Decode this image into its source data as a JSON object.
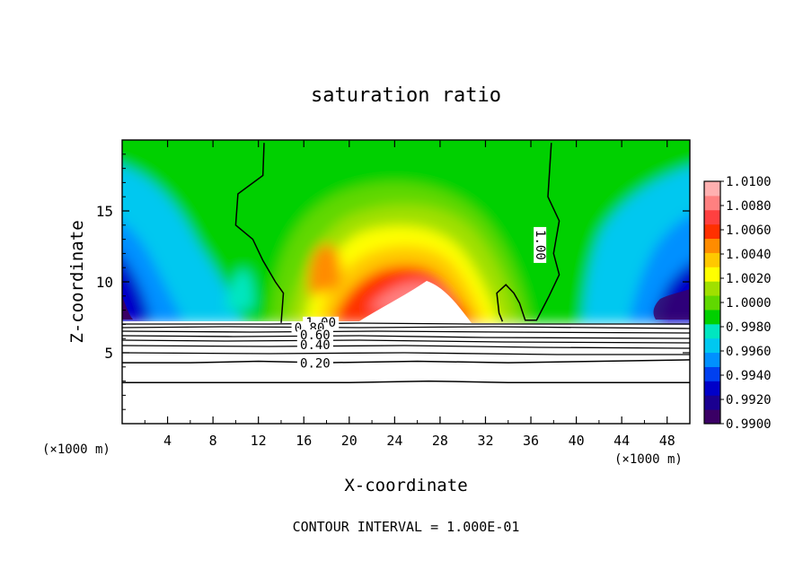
{
  "chart_data": {
    "type": "heatmap",
    "title": "saturation ratio",
    "xlabel": "X-coordinate",
    "ylabel": "Z-coordinate",
    "x_unit_left": "(×1000 m)",
    "x_unit_right": "(×1000 m)",
    "footer": "CONTOUR INTERVAL = 1.000E-01",
    "xlim": [
      0,
      50
    ],
    "ylim": [
      0,
      20
    ],
    "x_ticks": [
      4,
      8,
      12,
      16,
      20,
      24,
      28,
      32,
      36,
      40,
      44,
      48
    ],
    "x_tick_labels": [
      "4",
      "8",
      "12",
      "16",
      "20",
      "24",
      "28",
      "32",
      "36",
      "40",
      "44",
      "48"
    ],
    "y_ticks": [
      5,
      10,
      15
    ],
    "y_tick_labels": [
      "5",
      "10",
      "15"
    ],
    "colorbar": {
      "min": 0.99,
      "max": 1.01,
      "tick_values": [
        0.99,
        0.992,
        0.994,
        0.996,
        0.998,
        1.0,
        1.002,
        1.004,
        1.006,
        1.008,
        1.01
      ],
      "tick_labels": [
        "0.9900",
        "0.9920",
        "0.9940",
        "0.9960",
        "0.9980",
        "1.0000",
        "1.0020",
        "1.0040",
        "1.0060",
        "1.0080",
        "1.0100"
      ],
      "colors": [
        "#3a0065",
        "#1a0090",
        "#0000c8",
        "#0040f0",
        "#0090ff",
        "#00c8f0",
        "#00e6c0",
        "#00d000",
        "#60d800",
        "#a0e000",
        "#ffff00",
        "#ffc800",
        "#ff8c00",
        "#ff3000",
        "#ff4040",
        "#ff8080",
        "#ffb0b0"
      ]
    },
    "contour_labels": [
      {
        "text": "1.00",
        "x": 36.8,
        "y": 12.6,
        "rotation": 90
      },
      {
        "text": "1.00",
        "x": 17.5,
        "y": 7.1
      },
      {
        "text": "0.80",
        "x": 16.5,
        "y": 6.7
      },
      {
        "text": "0.60",
        "x": 17.0,
        "y": 6.2
      },
      {
        "text": "0.40",
        "x": 17.0,
        "y": 5.5
      },
      {
        "text": "0.20",
        "x": 17.0,
        "y": 4.2
      }
    ],
    "series": [
      {
        "value": 1.0,
        "points": [
          [
            12.5,
            19.8
          ],
          [
            12.4,
            17.5
          ],
          [
            10.2,
            16.2
          ],
          [
            10.0,
            14.0
          ],
          [
            11.5,
            13.0
          ],
          [
            12.4,
            11.5
          ],
          [
            13.5,
            10.0
          ],
          [
            14.2,
            9.2
          ],
          [
            14.0,
            7.1
          ]
        ]
      },
      {
        "value": 1.0,
        "points": [
          [
            37.8,
            19.8
          ],
          [
            37.5,
            16.0
          ],
          [
            38.5,
            14.3
          ],
          [
            38.0,
            12.0
          ],
          [
            38.5,
            10.5
          ],
          [
            37.6,
            9.0
          ],
          [
            36.5,
            7.3
          ],
          [
            35.5,
            7.3
          ],
          [
            35.0,
            8.5
          ],
          [
            34.5,
            9.2
          ],
          [
            33.8,
            9.8
          ],
          [
            33.0,
            9.2
          ],
          [
            33.2,
            7.8
          ],
          [
            33.5,
            7.2
          ]
        ]
      },
      {
        "value": 0.2,
        "points": [
          [
            0,
            4.3
          ],
          [
            6,
            4.3
          ],
          [
            12,
            4.4
          ],
          [
            18,
            4.3
          ],
          [
            26,
            4.4
          ],
          [
            34,
            4.3
          ],
          [
            42,
            4.4
          ],
          [
            50,
            4.5
          ]
        ]
      },
      {
        "value": 0.1,
        "points": [
          [
            0,
            2.9
          ],
          [
            10,
            2.9
          ],
          [
            20,
            2.9
          ],
          [
            27,
            3.0
          ],
          [
            34,
            2.9
          ],
          [
            42,
            2.9
          ],
          [
            50,
            2.9
          ]
        ]
      }
    ],
    "grid": false,
    "legend": "colorbar-right"
  }
}
